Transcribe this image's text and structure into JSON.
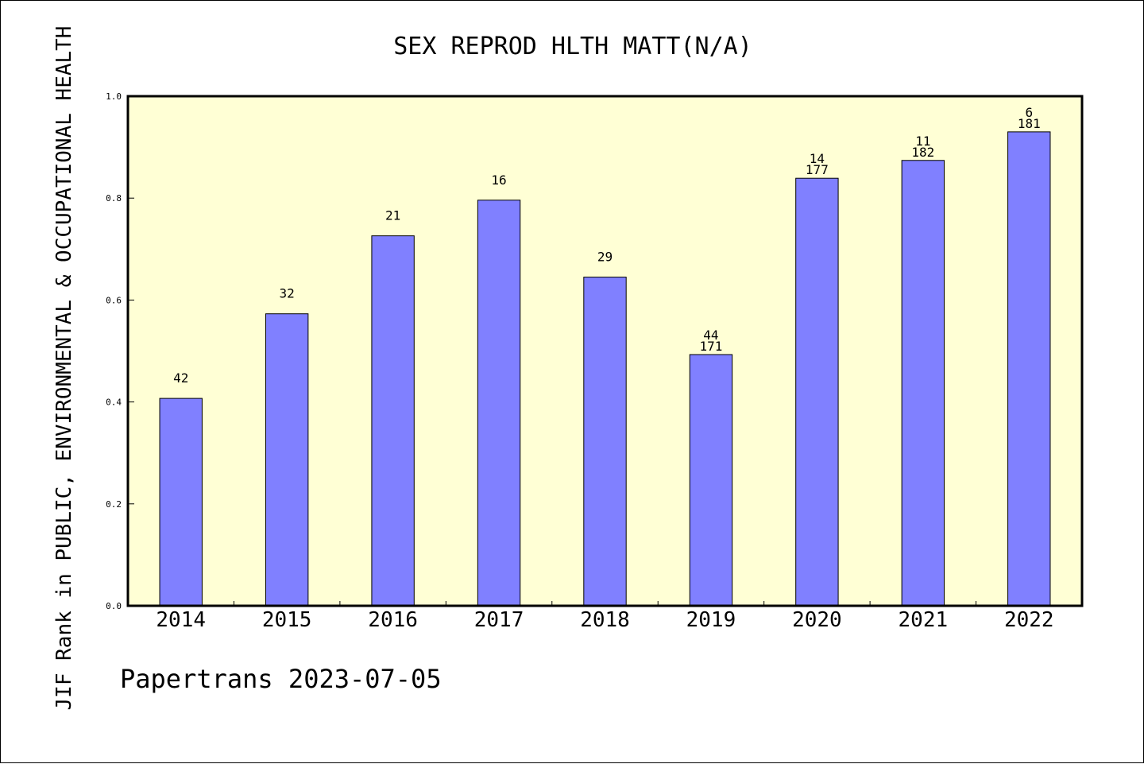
{
  "chart_data": {
    "type": "bar",
    "title": "SEX REPROD HLTH MATT(N/A)",
    "ylabel": "JIF Rank in PUBLIC, ENVIRONMENTAL & OCCUPATIONAL HEALTH",
    "xlabel": "",
    "footer": "Papertrans 2023-07-05",
    "ylim": [
      0.0,
      1.0
    ],
    "yticks": [
      "0.0",
      "0.2",
      "0.4",
      "0.6",
      "0.8",
      "1.0"
    ],
    "categories": [
      "2014",
      "2015",
      "2016",
      "2017",
      "2018",
      "2019",
      "2020",
      "2021",
      "2022"
    ],
    "values": [
      0.407,
      0.573,
      0.726,
      0.796,
      0.645,
      0.493,
      0.839,
      0.874,
      0.93
    ],
    "rank_labels": [
      "42",
      "32",
      "21",
      "16",
      "29",
      "44",
      "14",
      "11",
      "6"
    ],
    "total_labels": [
      "",
      "",
      "",
      "",
      "",
      "171",
      "177",
      "182",
      "181"
    ],
    "colors": {
      "plot_background": "#ffffd5",
      "bar_fill": "#8080ff",
      "bar_stroke": "#000000"
    },
    "grid": false
  }
}
